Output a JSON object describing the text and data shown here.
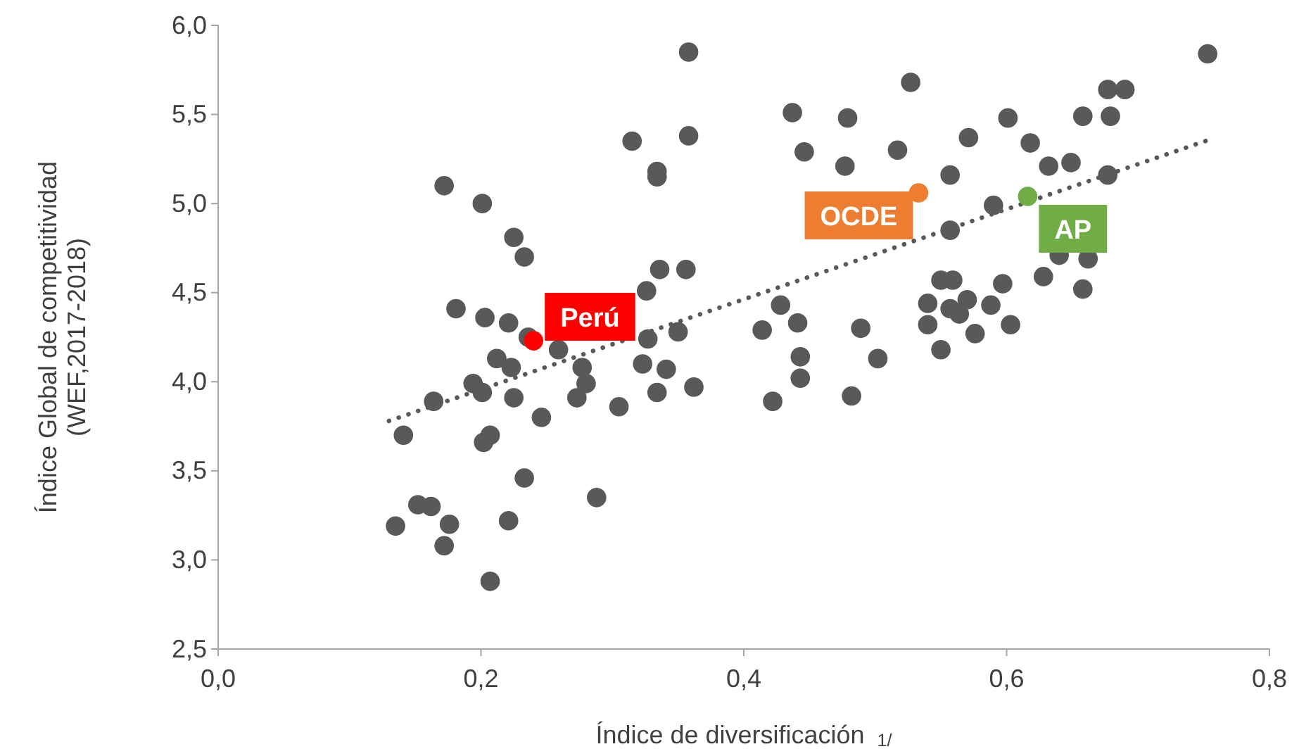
{
  "chart_data": {
    "type": "scatter",
    "xlabel": "Índice de diversificación $_{1/}$",
    "ylabel": "Índice Global de competitividad\n(WEF,2017-2018)",
    "xlim": [
      0,
      0.8
    ],
    "xticks": [
      {
        "value": 0,
        "label": "0,0"
      },
      {
        "value": 0.2,
        "label": "0,2"
      },
      {
        "value": 0.4,
        "label": "0,4"
      },
      {
        "value": 0.6,
        "label": "0,6"
      },
      {
        "value": 0.8,
        "label": "0,8"
      }
    ],
    "ylim": [
      2.5,
      6
    ],
    "yticks": [
      {
        "value": 2.5,
        "label": "2,5"
      },
      {
        "value": 3,
        "label": "3,0"
      },
      {
        "value": 3.5,
        "label": "3,5"
      },
      {
        "value": 4,
        "label": "4,0"
      },
      {
        "value": 4.5,
        "label": "4,5"
      },
      {
        "value": 5,
        "label": "5,0"
      },
      {
        "value": 5.5,
        "label": "5,5"
      },
      {
        "value": 6,
        "label": "6,0"
      }
    ],
    "grid": false,
    "marker": "circle",
    "series": [
      {
        "color": "#595959",
        "x": [
          0.358,
          0.315,
          0.358,
          0.334,
          0.334,
          0.172,
          0.201,
          0.225,
          0.233,
          0.336,
          0.356,
          0.181,
          0.326,
          0.203,
          0.221,
          0.236,
          0.327,
          0.35,
          0.259,
          0.212,
          0.223,
          0.277,
          0.323,
          0.341,
          0.194,
          0.201,
          0.164,
          0.225,
          0.28,
          0.273,
          0.334,
          0.362,
          0.305,
          0.246,
          0.141,
          0.207,
          0.202,
          0.233,
          0.288,
          0.152,
          0.162,
          0.135,
          0.176,
          0.221,
          0.172,
          0.207,
          0.527,
          0.437,
          0.479,
          0.677,
          0.69,
          0.601,
          0.658,
          0.679,
          0.571,
          0.446,
          0.517,
          0.618,
          0.477,
          0.557,
          0.632,
          0.649,
          0.677,
          0.59,
          0.557,
          0.64,
          0.662,
          0.55,
          0.559,
          0.597,
          0.628,
          0.658,
          0.428,
          0.54,
          0.57,
          0.557,
          0.564,
          0.588,
          0.414,
          0.441,
          0.489,
          0.54,
          0.576,
          0.603,
          0.443,
          0.502,
          0.55,
          0.443,
          0.422,
          0.482,
          0.753
        ],
        "values": [
          5.85,
          5.35,
          5.38,
          5.15,
          5.18,
          5.1,
          5.0,
          4.81,
          4.7,
          4.63,
          4.63,
          4.41,
          4.51,
          4.36,
          4.33,
          4.25,
          4.24,
          4.28,
          4.18,
          4.13,
          4.08,
          4.08,
          4.1,
          4.07,
          3.99,
          3.94,
          3.89,
          3.91,
          3.99,
          3.91,
          3.94,
          3.97,
          3.86,
          3.8,
          3.7,
          3.7,
          3.66,
          3.46,
          3.35,
          3.31,
          3.3,
          3.19,
          3.2,
          3.22,
          3.08,
          2.88,
          5.68,
          5.51,
          5.48,
          5.64,
          5.64,
          5.48,
          5.49,
          5.49,
          5.37,
          5.29,
          5.3,
          5.34,
          5.21,
          5.16,
          5.21,
          5.23,
          5.16,
          4.99,
          4.85,
          4.71,
          4.69,
          4.57,
          4.57,
          4.55,
          4.59,
          4.52,
          4.43,
          4.44,
          4.46,
          4.41,
          4.38,
          4.43,
          4.29,
          4.33,
          4.3,
          4.32,
          4.27,
          4.32,
          4.14,
          4.13,
          4.18,
          4.02,
          3.89,
          3.92,
          5.84
        ]
      },
      {
        "type": "line",
        "color": "#595959",
        "line_style": "dotted",
        "marker": "none",
        "x": [
          0.13,
          0.755
        ],
        "values": [
          3.78,
          5.36
        ]
      },
      {
        "name": "Perú",
        "color": "#ff0000",
        "x": [
          0.24
        ],
        "values": [
          4.23
        ]
      },
      {
        "name": "OCDE",
        "color": "#ed7d31",
        "x": [
          0.533
        ],
        "values": [
          5.06
        ]
      },
      {
        "name": "AP",
        "color": "#70ad47",
        "x": [
          0.616
        ],
        "values": [
          5.04
        ]
      }
    ]
  }
}
